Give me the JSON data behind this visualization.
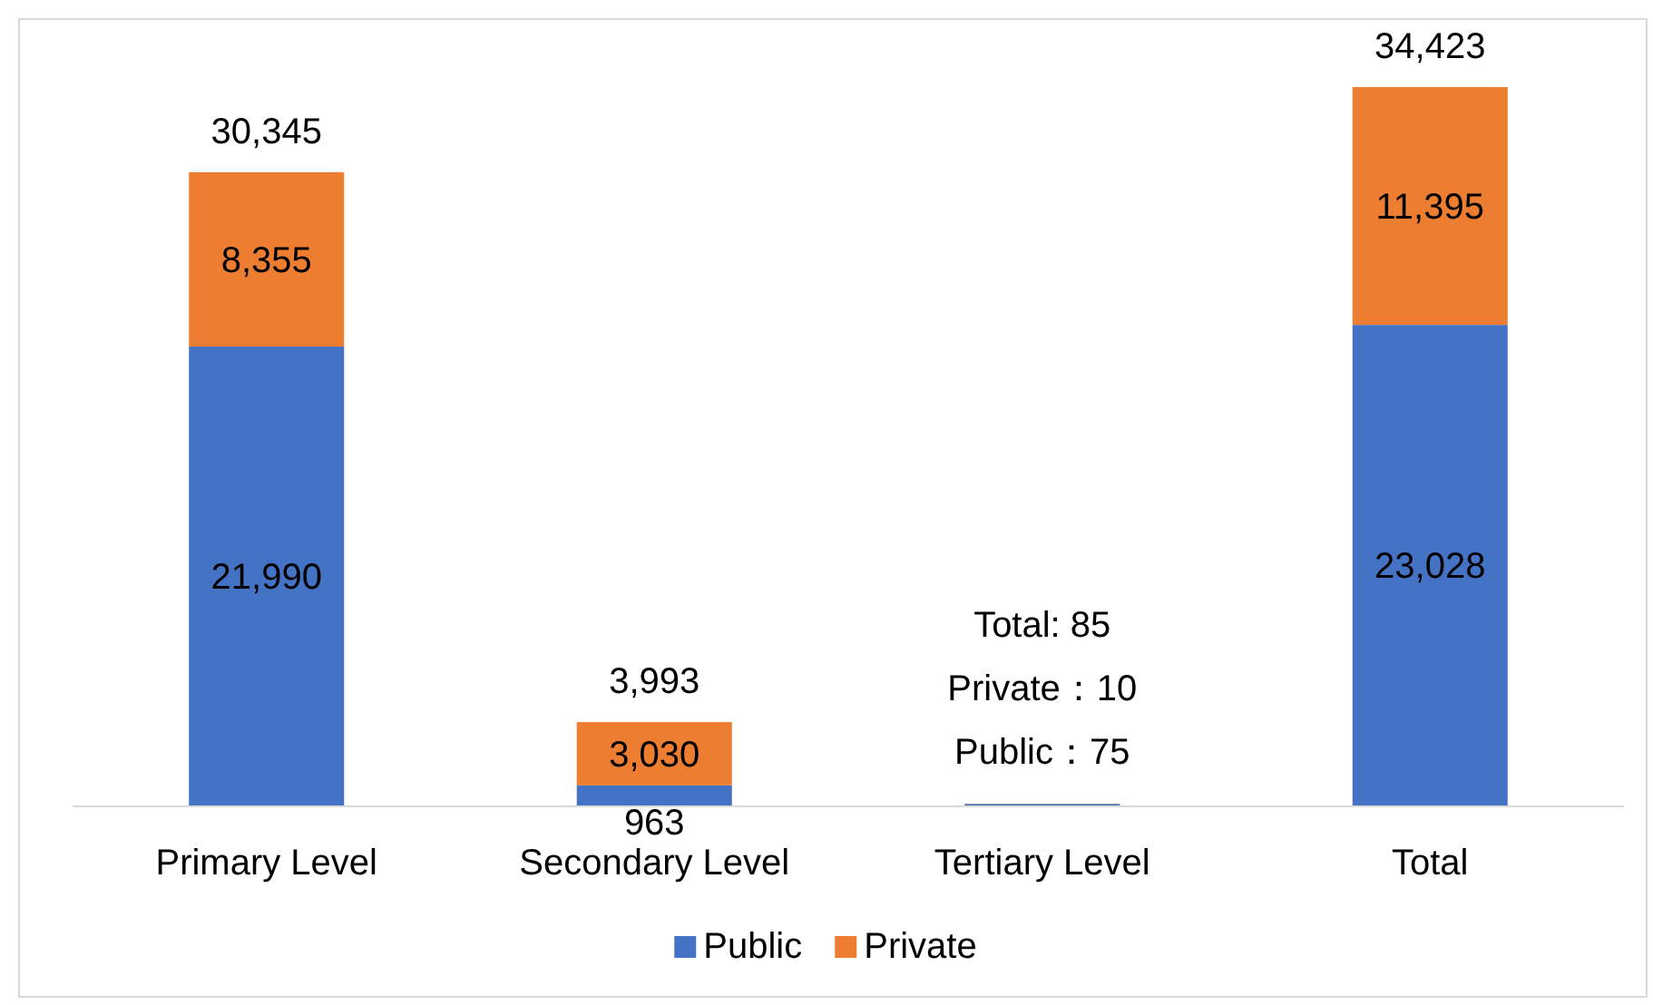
{
  "chart_data": {
    "type": "bar",
    "stacked": true,
    "categories": [
      "Primary Level",
      "Secondary Level",
      "Tertiary Level",
      "Total"
    ],
    "series": [
      {
        "name": "Public",
        "color": "#4472c4",
        "values": [
          21990,
          963,
          75,
          23028
        ],
        "value_labels": [
          "21,990",
          "963",
          null,
          "23,028"
        ]
      },
      {
        "name": "Private",
        "color": "#ed7d31",
        "values": [
          8355,
          3030,
          10,
          11395
        ],
        "value_labels": [
          "8,355",
          "3,030",
          null,
          "11,395"
        ]
      }
    ],
    "totals": [
      "30,345",
      "3,993",
      null,
      "34,423"
    ],
    "annotations": [
      "Total: 85",
      "Private：10",
      "Public：75"
    ],
    "legend": "bottom"
  }
}
